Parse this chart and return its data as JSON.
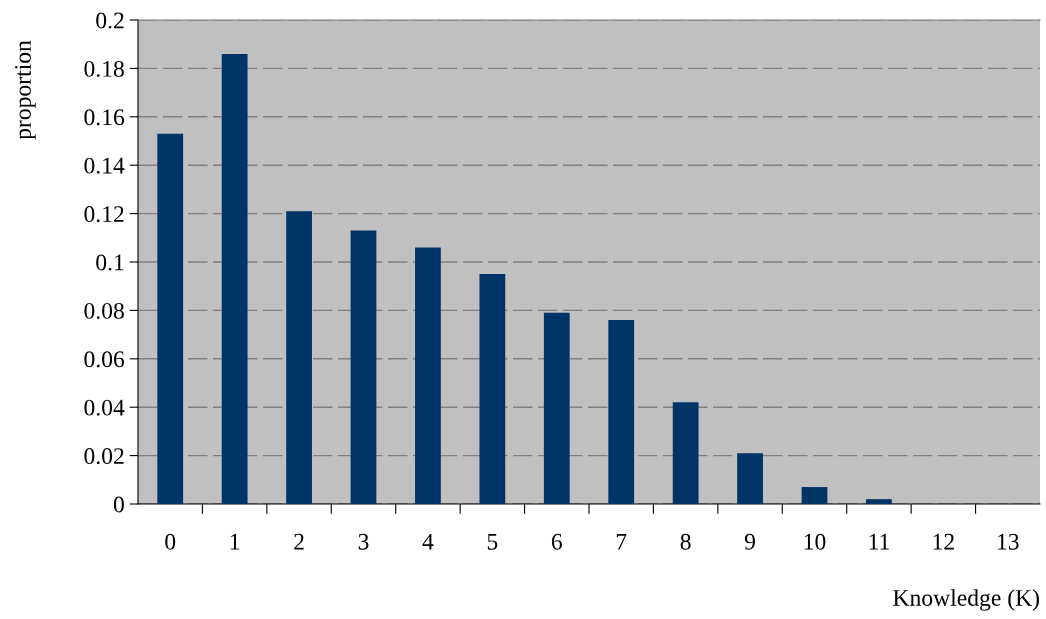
{
  "chart_data": {
    "type": "bar",
    "xlabel": "Knowledge (K)",
    "ylabel": "proportion",
    "categories": [
      "0",
      "1",
      "2",
      "3",
      "4",
      "5",
      "6",
      "7",
      "8",
      "9",
      "10",
      "11",
      "12",
      "13"
    ],
    "values": [
      0.153,
      0.186,
      0.121,
      0.113,
      0.106,
      0.095,
      0.079,
      0.076,
      0.042,
      0.021,
      0.007,
      0.002,
      0,
      0
    ],
    "color": "#003366",
    "ylim": [
      0,
      0.2
    ],
    "yticks": [
      0,
      0.02,
      0.04,
      0.06,
      0.08,
      0.1,
      0.12,
      0.14,
      0.16,
      0.18,
      0.2
    ],
    "grid": "y",
    "line_style": "dashed"
  }
}
